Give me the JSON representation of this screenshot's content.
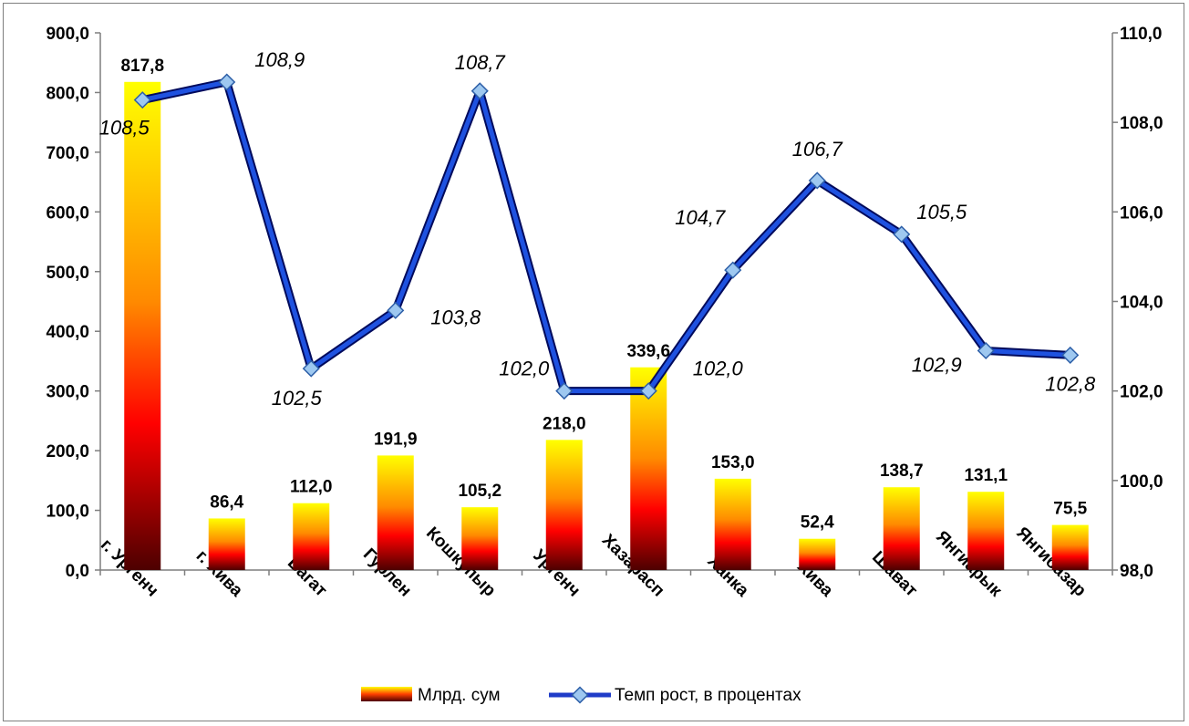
{
  "chart_data": {
    "type": "bar",
    "categories": [
      "г. Ургенч",
      "г. Хива",
      "Багат",
      "Гурлен",
      "Кошкупыр",
      "Ургенч",
      "Хазарасп",
      "Ханка",
      "Хива",
      "Шават",
      "Янгиарык",
      "Янгибазар"
    ],
    "series": [
      {
        "name": "Млрд. сум",
        "type": "bar",
        "axis": "left",
        "values": [
          817.8,
          86.4,
          112.0,
          191.9,
          105.2,
          218.0,
          339.6,
          153.0,
          52.4,
          138.7,
          131.1,
          75.5
        ],
        "labels": [
          "817,8",
          "86,4",
          "112,0",
          "191,9",
          "105,2",
          "218,0",
          "339,6",
          "153,0",
          "52,4",
          "138,7",
          "131,1",
          "75,5"
        ]
      },
      {
        "name": "Темп рост, в процентах",
        "type": "line",
        "axis": "right",
        "values": [
          108.5,
          108.9,
          102.5,
          103.8,
          108.7,
          102.0,
          102.0,
          104.7,
          106.7,
          105.5,
          102.9,
          102.8
        ],
        "labels": [
          "108,5",
          "108,9",
          "102,5",
          "103,8",
          "108,7",
          "102,0",
          "102,0",
          "104,7",
          "106,7",
          "105,5",
          "102,9",
          "102,8"
        ]
      }
    ],
    "y_left": {
      "min": 0,
      "max": 900,
      "ticks": [
        "0,0",
        "100,0",
        "200,0",
        "300,0",
        "400,0",
        "500,0",
        "600,0",
        "700,0",
        "800,0",
        "900,0"
      ]
    },
    "y_right": {
      "min": 98,
      "max": 110,
      "ticks": [
        "98,0",
        "100,0",
        "102,0",
        "104,0",
        "106,0",
        "108,0",
        "110,0"
      ]
    },
    "grid": false,
    "legend_position": "bottom",
    "colors": {
      "bar_top": "#ffff00",
      "bar_mid": "#ff0000",
      "bar_bottom": "#4d0000",
      "line": "#1f3cc8",
      "marker": "#9ec8f0"
    }
  }
}
